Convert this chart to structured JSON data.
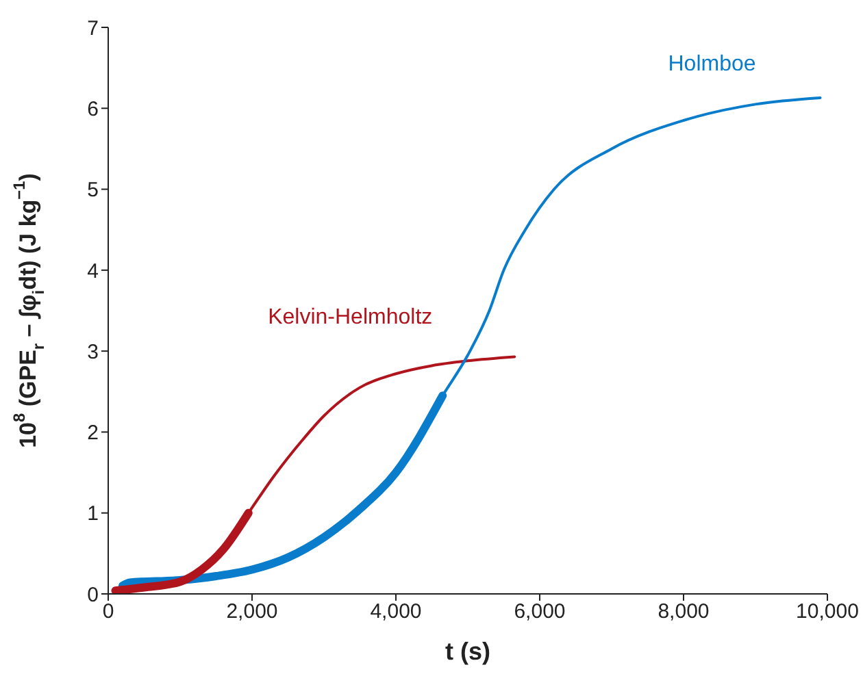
{
  "chart_data": {
    "type": "line",
    "xlabel": "t (s)",
    "ylabel": "10$^{8}$ (GPE$_{r}$ – ∫φ$_{i}$dt) (J kg$^{−1}$)",
    "xlim": [
      0,
      10000
    ],
    "xticks": [
      0,
      {
        "value": 2000,
        "label": "2,000"
      },
      {
        "value": 4000,
        "label": "4,000"
      },
      {
        "value": 6000,
        "label": "6,000"
      },
      {
        "value": 8000,
        "label": "8,000"
      },
      {
        "value": 10000,
        "label": "10,000"
      }
    ],
    "ylim": [
      0,
      7
    ],
    "yticks": [
      0,
      1,
      2,
      3,
      4,
      5,
      6,
      7
    ],
    "grid": false,
    "legend": false,
    "marker": "none",
    "line_style": "solid",
    "series": [
      {
        "name": "Kelvin-Helmholtz",
        "color": "#b0151e",
        "x": [
          100,
          200,
          500,
          1000,
          1300,
          1600,
          1950,
          2300,
          2700,
          3000,
          3500,
          4000,
          4500,
          5000,
          5650
        ],
        "values": [
          0.04,
          0.05,
          0.08,
          0.15,
          0.3,
          0.55,
          1.0,
          1.45,
          1.9,
          2.2,
          2.55,
          2.72,
          2.82,
          2.88,
          2.93
        ]
      },
      {
        "name": "Holmboe",
        "color": "#0a7ccc",
        "x": [
          100,
          300,
          1000,
          1500,
          2000,
          2500,
          3000,
          3500,
          4000,
          4650,
          5000,
          5300,
          5500,
          5800,
          6200,
          7000,
          8000,
          9000,
          9900
        ],
        "values": [
          0.05,
          0.14,
          0.17,
          0.22,
          0.3,
          0.45,
          0.7,
          1.05,
          1.5,
          2.45,
          2.95,
          3.5,
          4.0,
          4.5,
          5.0,
          5.5,
          5.85,
          6.05,
          6.13
        ]
      },
      {
        "color": "#0a7ccc",
        "x": [
          200,
          300,
          1000,
          1500,
          2000,
          2500,
          3000,
          3500,
          4000,
          4650
        ],
        "values": [
          0.1,
          0.14,
          0.17,
          0.22,
          0.3,
          0.45,
          0.7,
          1.05,
          1.5,
          2.45
        ]
      },
      {
        "color": "#b0151e",
        "x": [
          100,
          200,
          500,
          1000,
          1300,
          1600,
          1950
        ],
        "values": [
          0.04,
          0.05,
          0.08,
          0.15,
          0.3,
          0.55,
          1.0
        ]
      }
    ]
  }
}
